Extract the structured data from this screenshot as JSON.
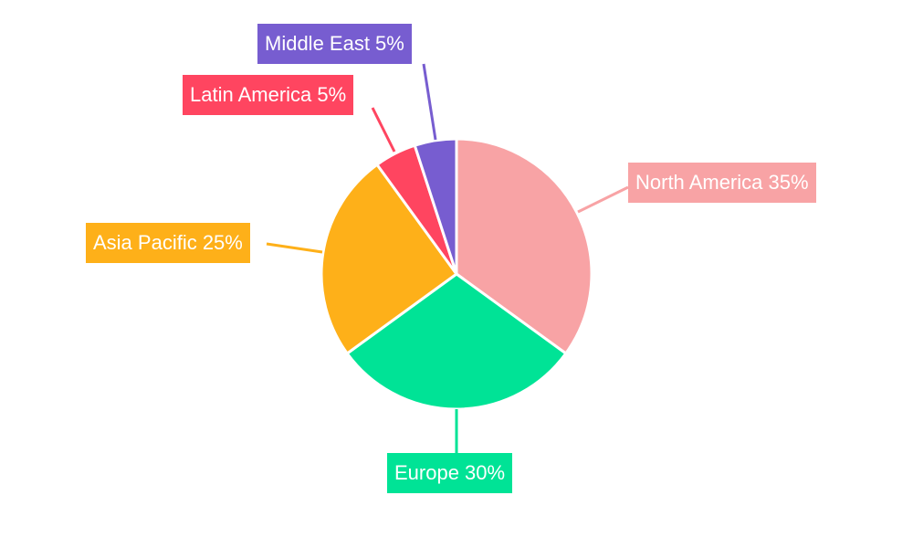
{
  "chart_data": {
    "type": "pie",
    "categories": [
      "North America",
      "Europe",
      "Asia Pacific",
      "Latin America",
      "Middle East"
    ],
    "values": [
      35,
      30,
      25,
      5,
      5
    ],
    "labels": [
      "North America 35%",
      "Europe 30%",
      "Asia Pacific 25%",
      "Latin America 5%",
      "Middle East 5%"
    ],
    "colors": [
      "#f8a3a5",
      "#00e396",
      "#feb019",
      "#ff4560",
      "#775dd0"
    ],
    "start_angle": "12 o'clock, clockwise"
  }
}
